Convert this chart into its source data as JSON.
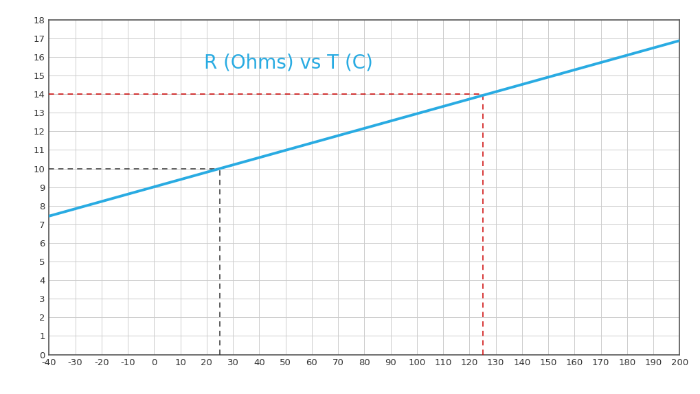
{
  "title": "R (Ohms) vs T (C)",
  "title_color": "#29ABE2",
  "title_fontsize": 20,
  "xlim": [
    -40,
    200
  ],
  "ylim": [
    0,
    18
  ],
  "xtick_step": 10,
  "ytick_step": 1,
  "line_color": "#29ABE2",
  "line_width": 2.8,
  "R0": 10.0,
  "T0": 25.0,
  "alpha": 0.00393,
  "T_start": -40,
  "T_end": 200,
  "crosshair1_T": 25,
  "crosshair1_R": 10,
  "crosshair1_color": "#333333",
  "crosshair2_T": 125,
  "crosshair2_R": 14,
  "crosshair2_color": "#CC0000",
  "grid_color": "#CCCCCC",
  "plot_bg": "#FFFFFF",
  "fig_bg": "#FFFFFF",
  "border_color": "#555555",
  "tick_fontsize": 9.5
}
